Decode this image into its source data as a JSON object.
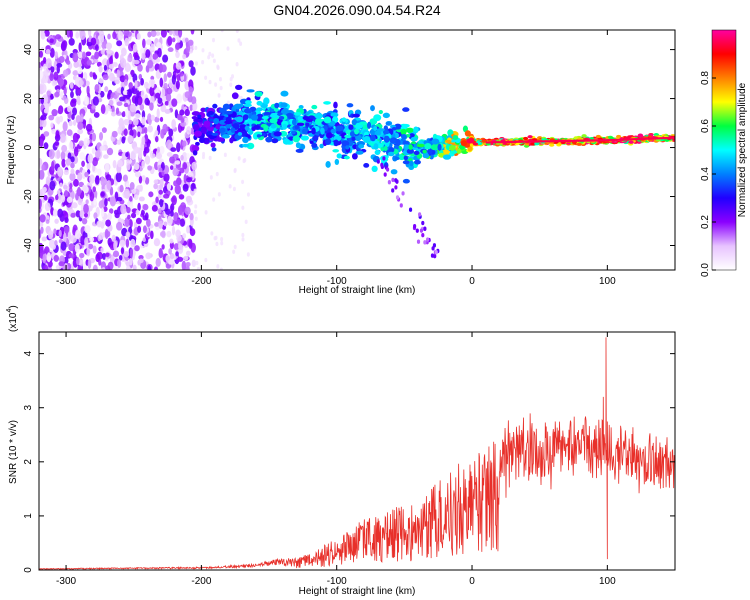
{
  "title": "GN04.2026.090.04.54.R24",
  "chart_data": [
    {
      "type": "heatmap",
      "xlabel": "Height of straight line (km)",
      "ylabel": "Frequency (Hz)",
      "xlim": [
        -320,
        150
      ],
      "ylim": [
        -50,
        48
      ],
      "x_ticks": [
        -300,
        -200,
        -100,
        0,
        100
      ],
      "y_ticks": [
        -40,
        -20,
        0,
        20,
        40
      ],
      "colorbar": {
        "label": "Normalized spectral amplitude",
        "range": [
          0,
          1
        ],
        "ticks": [
          0.0,
          0.2,
          0.4,
          0.6,
          0.8
        ],
        "tick_labels": [
          "0.0",
          "0.2",
          "0.4",
          "0.6",
          "0.8"
        ],
        "colormap": [
          "#ffffff",
          "#e7c3ff",
          "#8a00ff",
          "#2000ff",
          "#0080ff",
          "#00ffff",
          "#00ff40",
          "#ffff00",
          "#ff8000",
          "#ff0000",
          "#ff00a0"
        ]
      },
      "features": [
        {
          "name": "broadband noise",
          "x_range": [
            -320,
            -205
          ],
          "freq_range": [
            -50,
            48
          ],
          "amplitude": 0.2
        },
        {
          "name": "signal band",
          "points": [
            {
              "x": -205,
              "f": 7,
              "amp": 0.3
            },
            {
              "x": -150,
              "f": 12,
              "amp": 0.5
            },
            {
              "x": -100,
              "f": 6,
              "amp": 0.45
            },
            {
              "x": -60,
              "f": 2,
              "amp": 0.5
            },
            {
              "x": -30,
              "f": 0,
              "amp": 0.55
            },
            {
              "x": 0,
              "f": 2,
              "amp": 0.85
            },
            {
              "x": 100,
              "f": 3,
              "amp": 0.9
            },
            {
              "x": 150,
              "f": 4,
              "amp": 0.9
            }
          ]
        }
      ]
    },
    {
      "type": "line",
      "xlabel": "Height of straight line (km)",
      "ylabel": "SNR (10 * v/v)",
      "y_scale_label": "(x10",
      "y_scale_exp": "4",
      "xlim": [
        -320,
        150
      ],
      "ylim": [
        0,
        4.4
      ],
      "x_ticks": [
        -300,
        -200,
        -100,
        0,
        100
      ],
      "y_ticks": [
        0,
        1,
        2,
        3,
        4
      ],
      "color": "#e8302a",
      "envelope": {
        "x": [
          -320,
          -200,
          -160,
          -120,
          -100,
          -80,
          -60,
          -40,
          -30,
          -20,
          -10,
          0,
          10,
          20,
          40,
          60,
          80,
          95,
          100,
          105,
          120,
          150
        ],
        "y": [
          0.02,
          0.04,
          0.08,
          0.25,
          0.5,
          0.8,
          0.95,
          1.05,
          1.3,
          1.5,
          1.65,
          1.7,
          1.9,
          2.1,
          2.25,
          2.3,
          2.35,
          2.3,
          2.4,
          2.2,
          2.1,
          2.0
        ]
      },
      "spikes": [
        {
          "x": 99,
          "y": 4.3
        },
        {
          "x": 100,
          "y": 0.2
        },
        {
          "x": 97,
          "y": 3.2
        }
      ]
    }
  ]
}
